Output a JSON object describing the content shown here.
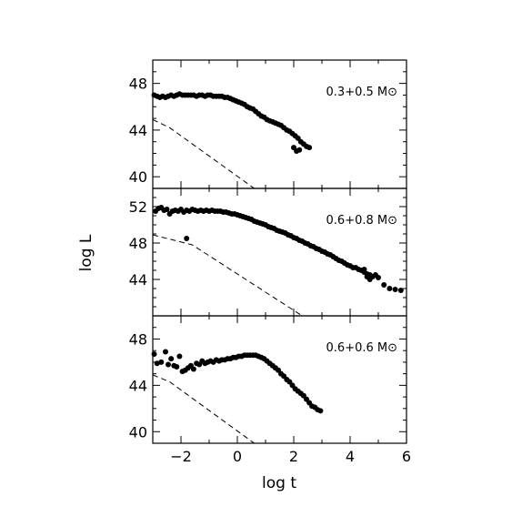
{
  "figure": {
    "ylabel": "log L",
    "xlabel": "log t"
  },
  "chart_data": [
    {
      "type": "scatter",
      "title": "0.3+0.5 M⊙",
      "xlim": [
        -3,
        6
      ],
      "ylim": [
        39,
        50
      ],
      "yticks": [
        40,
        44,
        48
      ],
      "xticks": [
        -2,
        0,
        2,
        4,
        6
      ],
      "series": [
        {
          "points": [
            [
              -2.95,
              47.0
            ],
            [
              -2.85,
              46.9
            ],
            [
              -2.75,
              46.8
            ],
            [
              -2.65,
              46.9
            ],
            [
              -2.55,
              46.8
            ],
            [
              -2.45,
              46.9
            ],
            [
              -2.35,
              47.0
            ],
            [
              -2.25,
              46.9
            ],
            [
              -2.15,
              47.0
            ],
            [
              -2.05,
              47.1
            ],
            [
              -1.95,
              47.0
            ],
            [
              -1.85,
              47.0
            ],
            [
              -1.75,
              47.0
            ],
            [
              -1.65,
              47.0
            ],
            [
              -1.55,
              47.0
            ],
            [
              -1.45,
              46.9
            ],
            [
              -1.35,
              47.0
            ],
            [
              -1.25,
              47.0
            ],
            [
              -1.15,
              46.9
            ],
            [
              -1.05,
              47.0
            ],
            [
              -0.95,
              47.0
            ],
            [
              -0.85,
              46.9
            ],
            [
              -0.75,
              46.9
            ],
            [
              -0.65,
              46.9
            ],
            [
              -0.55,
              46.9
            ],
            [
              -0.45,
              46.8
            ],
            [
              -0.35,
              46.8
            ],
            [
              -0.25,
              46.7
            ],
            [
              -0.15,
              46.6
            ],
            [
              -0.05,
              46.5
            ],
            [
              0.05,
              46.4
            ],
            [
              0.15,
              46.3
            ],
            [
              0.25,
              46.2
            ],
            [
              0.35,
              46.0
            ],
            [
              0.45,
              45.9
            ],
            [
              0.55,
              45.8
            ],
            [
              0.65,
              45.6
            ],
            [
              0.75,
              45.4
            ],
            [
              0.85,
              45.2
            ],
            [
              0.95,
              45.1
            ],
            [
              1.05,
              44.9
            ],
            [
              1.15,
              44.8
            ],
            [
              1.25,
              44.7
            ],
            [
              1.35,
              44.6
            ],
            [
              1.45,
              44.5
            ],
            [
              1.55,
              44.4
            ],
            [
              1.65,
              44.2
            ],
            [
              1.75,
              44.0
            ],
            [
              1.85,
              43.9
            ],
            [
              1.95,
              43.7
            ],
            [
              2.05,
              43.5
            ],
            [
              2.15,
              43.3
            ],
            [
              2.25,
              43.0
            ],
            [
              2.35,
              42.8
            ],
            [
              2.45,
              42.6
            ],
            [
              2.55,
              42.5
            ],
            [
              2.0,
              42.5
            ],
            [
              2.1,
              42.2
            ],
            [
              2.2,
              42.3
            ]
          ]
        }
      ],
      "reference_line": [
        [
          -3.0,
          44.9
        ],
        [
          -2.4,
          44.2
        ],
        [
          0.6,
          39.0
        ]
      ]
    },
    {
      "type": "scatter",
      "title": "0.6+0.8 M⊙",
      "xlim": [
        -3,
        6
      ],
      "ylim": [
        40,
        54
      ],
      "yticks": [
        44,
        48,
        52
      ],
      "xticks": [
        -2,
        0,
        2,
        4,
        6
      ],
      "series": [
        {
          "points": [
            [
              -2.9,
              51.5
            ],
            [
              -2.8,
              51.8
            ],
            [
              -2.7,
              51.9
            ],
            [
              -2.6,
              51.6
            ],
            [
              -2.5,
              51.7
            ],
            [
              -2.4,
              51.2
            ],
            [
              -2.3,
              51.5
            ],
            [
              -2.2,
              51.6
            ],
            [
              -2.1,
              51.5
            ],
            [
              -2.0,
              51.7
            ],
            [
              -1.9,
              51.4
            ],
            [
              -1.8,
              51.6
            ],
            [
              -1.7,
              51.5
            ],
            [
              -1.6,
              51.7
            ],
            [
              -1.5,
              51.6
            ],
            [
              -1.4,
              51.5
            ],
            [
              -1.3,
              51.6
            ],
            [
              -1.2,
              51.5
            ],
            [
              -1.1,
              51.6
            ],
            [
              -1.0,
              51.5
            ],
            [
              -0.9,
              51.6
            ],
            [
              -0.8,
              51.5
            ],
            [
              -0.7,
              51.5
            ],
            [
              -0.6,
              51.5
            ],
            [
              -0.5,
              51.4
            ],
            [
              -0.4,
              51.4
            ],
            [
              -0.3,
              51.3
            ],
            [
              -0.2,
              51.2
            ],
            [
              -0.1,
              51.2
            ],
            [
              0.0,
              51.1
            ],
            [
              0.1,
              51.0
            ],
            [
              0.2,
              50.9
            ],
            [
              0.3,
              50.8
            ],
            [
              0.4,
              50.7
            ],
            [
              0.5,
              50.6
            ],
            [
              0.6,
              50.4
            ],
            [
              0.7,
              50.3
            ],
            [
              0.8,
              50.2
            ],
            [
              0.9,
              50.1
            ],
            [
              1.0,
              50.0
            ],
            [
              1.1,
              49.8
            ],
            [
              1.2,
              49.7
            ],
            [
              1.3,
              49.6
            ],
            [
              1.4,
              49.4
            ],
            [
              1.5,
              49.3
            ],
            [
              1.6,
              49.2
            ],
            [
              1.7,
              49.1
            ],
            [
              1.8,
              48.9
            ],
            [
              1.9,
              48.8
            ],
            [
              2.0,
              48.6
            ],
            [
              2.1,
              48.5
            ],
            [
              2.2,
              48.3
            ],
            [
              2.3,
              48.2
            ],
            [
              2.4,
              48.0
            ],
            [
              2.5,
              47.9
            ],
            [
              2.6,
              47.7
            ],
            [
              2.7,
              47.6
            ],
            [
              2.8,
              47.4
            ],
            [
              2.9,
              47.3
            ],
            [
              3.0,
              47.1
            ],
            [
              3.1,
              47.0
            ],
            [
              3.2,
              46.8
            ],
            [
              3.3,
              46.7
            ],
            [
              3.4,
              46.5
            ],
            [
              3.5,
              46.3
            ],
            [
              3.6,
              46.1
            ],
            [
              3.7,
              46.0
            ],
            [
              3.8,
              45.8
            ],
            [
              3.9,
              45.6
            ],
            [
              4.0,
              45.5
            ],
            [
              4.1,
              45.3
            ],
            [
              4.2,
              45.3
            ],
            [
              4.3,
              45.1
            ],
            [
              4.4,
              45.0
            ],
            [
              4.5,
              44.8
            ],
            [
              4.6,
              44.6
            ],
            [
              4.7,
              44.5
            ],
            [
              4.8,
              44.3
            ],
            [
              4.9,
              44.5
            ],
            [
              5.0,
              44.2
            ],
            [
              4.5,
              45.1
            ],
            [
              4.6,
              44.3
            ],
            [
              4.7,
              44.0
            ],
            [
              5.2,
              43.4
            ],
            [
              5.4,
              43.0
            ],
            [
              5.6,
              42.9
            ],
            [
              5.8,
              42.8
            ],
            [
              -1.8,
              48.5
            ]
          ]
        }
      ],
      "reference_line": [
        [
          -3.0,
          48.9
        ],
        [
          -1.6,
          47.8
        ],
        [
          2.3,
          40.0
        ]
      ]
    },
    {
      "type": "scatter",
      "title": "0.6+0.6 M⊙",
      "xlim": [
        -3,
        6
      ],
      "ylim": [
        39,
        50
      ],
      "yticks": [
        40,
        44,
        48
      ],
      "xticks": [
        -2,
        0,
        2,
        4,
        6
      ],
      "series": [
        {
          "points": [
            [
              -2.95,
              46.7
            ],
            [
              -2.85,
              45.9
            ],
            [
              -2.7,
              46.0
            ],
            [
              -2.55,
              46.9
            ],
            [
              -2.45,
              45.8
            ],
            [
              -2.35,
              46.3
            ],
            [
              -2.25,
              45.7
            ],
            [
              -2.15,
              45.6
            ],
            [
              -2.05,
              46.5
            ],
            [
              -1.95,
              45.2
            ],
            [
              -1.85,
              45.3
            ],
            [
              -1.75,
              45.5
            ],
            [
              -1.65,
              45.7
            ],
            [
              -1.55,
              45.4
            ],
            [
              -1.45,
              45.9
            ],
            [
              -1.35,
              45.8
            ],
            [
              -1.25,
              46.1
            ],
            [
              -1.15,
              45.9
            ],
            [
              -1.05,
              46.0
            ],
            [
              -0.95,
              46.1
            ],
            [
              -0.85,
              46.0
            ],
            [
              -0.75,
              46.2
            ],
            [
              -0.65,
              46.1
            ],
            [
              -0.55,
              46.2
            ],
            [
              -0.45,
              46.2
            ],
            [
              -0.35,
              46.3
            ],
            [
              -0.25,
              46.3
            ],
            [
              -0.15,
              46.4
            ],
            [
              -0.05,
              46.4
            ],
            [
              0.05,
              46.5
            ],
            [
              0.15,
              46.5
            ],
            [
              0.25,
              46.6
            ],
            [
              0.35,
              46.6
            ],
            [
              0.45,
              46.6
            ],
            [
              0.55,
              46.6
            ],
            [
              0.65,
              46.6
            ],
            [
              0.75,
              46.5
            ],
            [
              0.85,
              46.4
            ],
            [
              0.95,
              46.3
            ],
            [
              1.05,
              46.1
            ],
            [
              1.15,
              45.9
            ],
            [
              1.25,
              45.7
            ],
            [
              1.35,
              45.5
            ],
            [
              1.45,
              45.3
            ],
            [
              1.55,
              45.0
            ],
            [
              1.65,
              44.8
            ],
            [
              1.75,
              44.5
            ],
            [
              1.85,
              44.3
            ],
            [
              1.95,
              44.0
            ],
            [
              2.05,
              43.7
            ],
            [
              2.15,
              43.5
            ],
            [
              2.25,
              43.3
            ],
            [
              2.35,
              43.1
            ],
            [
              2.45,
              42.8
            ],
            [
              2.55,
              42.5
            ],
            [
              2.65,
              42.2
            ],
            [
              2.75,
              42.1
            ],
            [
              2.85,
              41.9
            ],
            [
              2.95,
              41.8
            ]
          ]
        }
      ],
      "reference_line": [
        [
          -3.0,
          44.9
        ],
        [
          -2.4,
          44.3
        ],
        [
          0.6,
          39.0
        ]
      ]
    }
  ]
}
